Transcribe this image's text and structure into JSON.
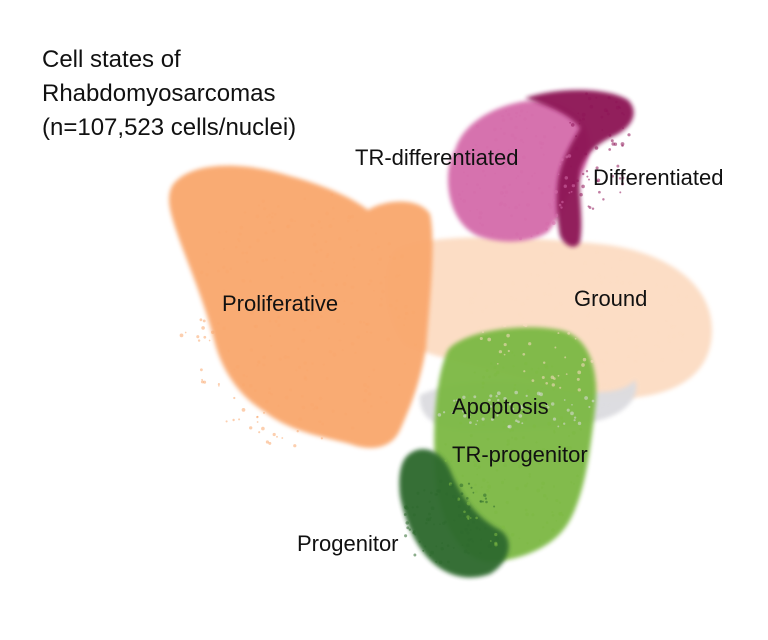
{
  "chart_data": {
    "type": "scatter",
    "title_lines": [
      "Cell states of",
      "Rhabdomyosarcomas",
      "(n=107,523 cells/nuclei)"
    ],
    "xlabel": "",
    "ylabel": "",
    "axes_visible": false,
    "grid": false,
    "legend": "none",
    "clusters": [
      {
        "name": "Proliferative",
        "color": "#F9A86E"
      },
      {
        "name": "Ground",
        "color": "#FCDCC3"
      },
      {
        "name": "TR-differentiated",
        "color": "#D56DAB"
      },
      {
        "name": "Differentiated",
        "color": "#8E1457"
      },
      {
        "name": "Apoptosis",
        "color": "#DCDCE0"
      },
      {
        "name": "TR-progenitor",
        "color": "#7DB944"
      },
      {
        "name": "Progenitor",
        "color": "#2E6A2E"
      }
    ]
  }
}
